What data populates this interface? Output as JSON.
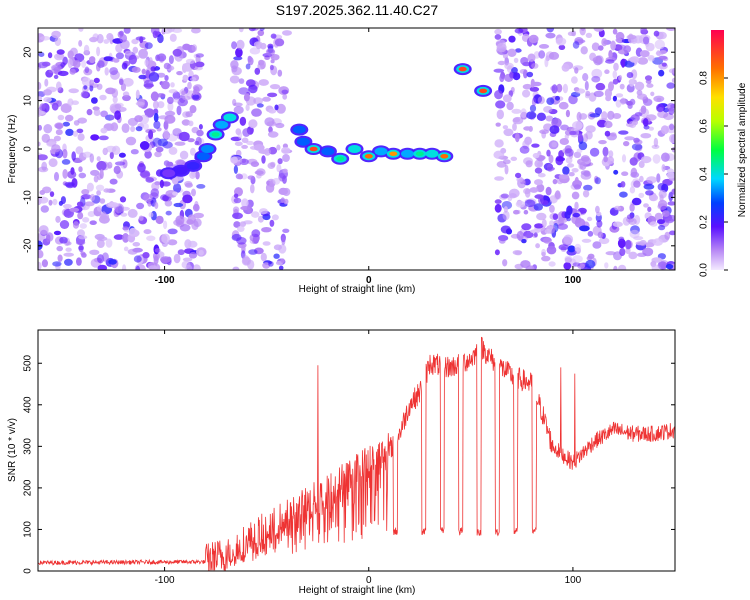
{
  "title": "S197.2025.362.11.40.C27",
  "chart_data": [
    {
      "type": "heatmap",
      "name": "spectrogram",
      "xlabel": "Height of straight line (km)",
      "ylabel": "Frequency (Hz)",
      "xlim": [
        -162,
        150
      ],
      "ylim": [
        -25,
        25
      ],
      "xticks": [
        -100,
        0,
        100
      ],
      "yticks": [
        -20,
        -10,
        0,
        10,
        20
      ],
      "colorbar": {
        "label": "Normalized spectral amplitude",
        "range": [
          0,
          1
        ],
        "ticks": [
          0.0,
          0.2,
          0.4,
          0.6,
          0.8
        ]
      },
      "noise_regions": [
        [
          -162,
          -82
        ],
        [
          -66,
          -40
        ],
        [
          63,
          150
        ]
      ],
      "signal_track": [
        {
          "x": -98,
          "y": -5,
          "amp": 0.15
        },
        {
          "x": -92,
          "y": -4.5,
          "amp": 0.2
        },
        {
          "x": -86,
          "y": -3.5,
          "amp": 0.22
        },
        {
          "x": -81,
          "y": -1.5,
          "amp": 0.3
        },
        {
          "x": -79,
          "y": 0,
          "amp": 0.33
        },
        {
          "x": -75,
          "y": 3,
          "amp": 0.45
        },
        {
          "x": -72,
          "y": 5,
          "amp": 0.35
        },
        {
          "x": -68,
          "y": 6.5,
          "amp": 0.4
        },
        {
          "x": -34,
          "y": 4,
          "amp": 0.3
        },
        {
          "x": -32,
          "y": 1.5,
          "amp": 0.3
        },
        {
          "x": -27,
          "y": 0,
          "amp": 0.9
        },
        {
          "x": -20,
          "y": -0.5,
          "amp": 0.3
        },
        {
          "x": -14,
          "y": -2,
          "amp": 0.45
        },
        {
          "x": -7,
          "y": 0,
          "amp": 0.4
        },
        {
          "x": 0,
          "y": -1.5,
          "amp": 0.85
        },
        {
          "x": 6,
          "y": -0.5,
          "amp": 0.35
        },
        {
          "x": 12,
          "y": -1,
          "amp": 0.8
        },
        {
          "x": 19,
          "y": -1,
          "amp": 0.35
        },
        {
          "x": 25,
          "y": -1,
          "amp": 0.45
        },
        {
          "x": 31,
          "y": -1,
          "amp": 0.4
        },
        {
          "x": 37,
          "y": -1.5,
          "amp": 0.85
        },
        {
          "x": 46,
          "y": 16.5,
          "amp": 0.9
        },
        {
          "x": 56,
          "y": 12,
          "amp": 0.9
        }
      ]
    },
    {
      "type": "line",
      "name": "snr",
      "xlabel": "Height of straight line (km)",
      "ylabel": "SNR (10 * v/v)",
      "xlim": [
        -162,
        150
      ],
      "ylim": [
        0,
        580
      ],
      "xticks": [
        -100,
        0,
        100
      ],
      "yticks": [
        0,
        100,
        200,
        300,
        400,
        500
      ],
      "color": "#ee3333",
      "envelope": {
        "x": [
          -162,
          -80,
          -70,
          -60,
          -50,
          -40,
          -30,
          -20,
          -10,
          0,
          10,
          15,
          20,
          25,
          30,
          40,
          50,
          55,
          60,
          70,
          80,
          85,
          90,
          100,
          110,
          120,
          130,
          140,
          150
        ],
        "y": [
          20,
          22,
          40,
          70,
          100,
          130,
          160,
          190,
          230,
          260,
          290,
          330,
          400,
          430,
          500,
          490,
          510,
          540,
          510,
          470,
          450,
          380,
          300,
          260,
          310,
          340,
          330,
          330,
          340
        ]
      },
      "dropouts": [
        [
          12,
          14
        ],
        [
          26,
          28
        ],
        [
          35,
          37
        ],
        [
          44,
          46
        ],
        [
          53,
          55
        ],
        [
          62,
          64
        ],
        [
          71,
          73
        ],
        [
          80,
          82
        ]
      ],
      "dropout_value": 95,
      "spikes": [
        {
          "x": -25,
          "y": 495
        },
        {
          "x": 94,
          "y": 490
        },
        {
          "x": 101,
          "y": 475
        }
      ]
    }
  ]
}
